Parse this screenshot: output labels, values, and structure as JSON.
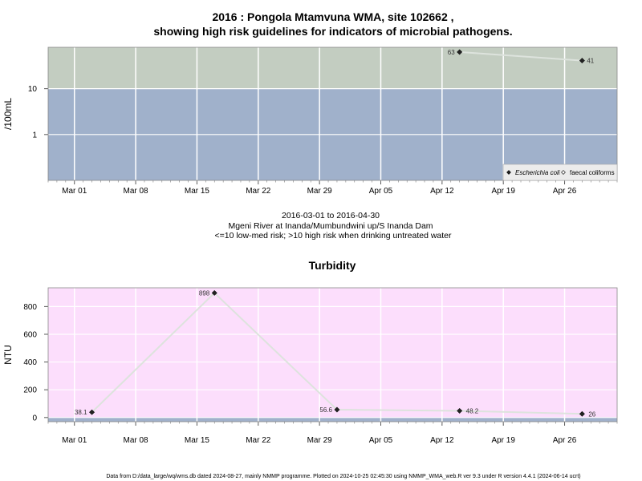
{
  "header": {
    "title_line1": "2016 : Pongola Mtamvuna WMA, site 102662 ,",
    "title_line2": "showing high risk guidelines for indicators of microbial pathogens."
  },
  "caption": {
    "line1": "2016-03-01 to 2016-04-30",
    "line2": "Mgeni River at Inanda/Mumbundwini up/S Inanda Dam",
    "line3": "<=10 low-med risk; >10 high risk when drinking untreated water"
  },
  "footer": {
    "text": "Data from D:/data_large/wq/wms.db dated 2024-08-27, mainly NMMP programme. Plotted on 2024-10-25 02:45:30 using NMMP_WMA_web.R ver 9.3 under R version 4.4.1 (2024-06-14 ucrt)"
  },
  "colors": {
    "high_risk_band": "#c3cdc1",
    "low_risk_band": "#a0b1cb",
    "turbidity_bg": "#fcdefc",
    "gridline": "#ffffff",
    "series_line": "#dde3dd",
    "marker": "#222222"
  },
  "chart_data": [
    {
      "type": "line",
      "title": "",
      "ylabel": "/100mL",
      "xlabel": "",
      "y_scale": "log",
      "ylim": [
        0.1,
        80
      ],
      "xlim": [
        "2016-02-27",
        "2016-05-02"
      ],
      "y_ticks": [
        {
          "value": 1,
          "label": "1"
        },
        {
          "value": 10,
          "label": "10"
        }
      ],
      "x_ticks": [
        {
          "date": "2016-03-01",
          "label": "Mar 01"
        },
        {
          "date": "2016-03-08",
          "label": "Mar 08"
        },
        {
          "date": "2016-03-15",
          "label": "Mar 15"
        },
        {
          "date": "2016-03-22",
          "label": "Mar 22"
        },
        {
          "date": "2016-03-29",
          "label": "Mar 29"
        },
        {
          "date": "2016-04-05",
          "label": "Apr 05"
        },
        {
          "date": "2016-04-12",
          "label": "Apr 12"
        },
        {
          "date": "2016-04-19",
          "label": "Apr 19"
        },
        {
          "date": "2016-04-26",
          "label": "Apr 26"
        }
      ],
      "guideline": {
        "value": 10,
        "above": "high risk",
        "below": "low-med risk"
      },
      "grid": true,
      "legend_position": "bottom-right",
      "series": [
        {
          "name": "Escherichia coli",
          "marker": "filled-diamond",
          "points": [
            {
              "x": "2016-04-14",
              "y": 63,
              "label": "63"
            },
            {
              "x": "2016-04-28",
              "y": 41,
              "label": "41"
            }
          ]
        },
        {
          "name": "faecal coliforms",
          "marker": "open-diamond",
          "points": []
        }
      ]
    },
    {
      "type": "line",
      "title": "Turbidity",
      "ylabel": "NTU",
      "xlabel": "",
      "y_scale": "linear",
      "ylim": [
        -30,
        935
      ],
      "xlim": [
        "2016-02-27",
        "2016-05-02"
      ],
      "y_ticks": [
        {
          "value": 0,
          "label": "0"
        },
        {
          "value": 200,
          "label": "200"
        },
        {
          "value": 400,
          "label": "400"
        },
        {
          "value": 600,
          "label": "600"
        },
        {
          "value": 800,
          "label": "800"
        }
      ],
      "x_ticks": [
        {
          "date": "2016-03-01",
          "label": "Mar 01"
        },
        {
          "date": "2016-03-08",
          "label": "Mar 08"
        },
        {
          "date": "2016-03-15",
          "label": "Mar 15"
        },
        {
          "date": "2016-03-22",
          "label": "Mar 22"
        },
        {
          "date": "2016-03-29",
          "label": "Mar 29"
        },
        {
          "date": "2016-04-05",
          "label": "Apr 05"
        },
        {
          "date": "2016-04-12",
          "label": "Apr 12"
        },
        {
          "date": "2016-04-19",
          "label": "Apr 19"
        },
        {
          "date": "2016-04-26",
          "label": "Apr 26"
        }
      ],
      "guideline": {
        "value": 0
      },
      "grid": true,
      "series": [
        {
          "name": "",
          "marker": "filled-diamond",
          "points": [
            {
              "x": "2016-03-03",
              "y": 38.1,
              "label": "38.1"
            },
            {
              "x": "2016-03-17",
              "y": 898,
              "label": "898"
            },
            {
              "x": "2016-03-31",
              "y": 56.6,
              "label": "56.6"
            },
            {
              "x": "2016-04-14",
              "y": 48.2,
              "label": "48.2"
            },
            {
              "x": "2016-04-28",
              "y": 26,
              "label": "26"
            }
          ]
        }
      ]
    }
  ]
}
